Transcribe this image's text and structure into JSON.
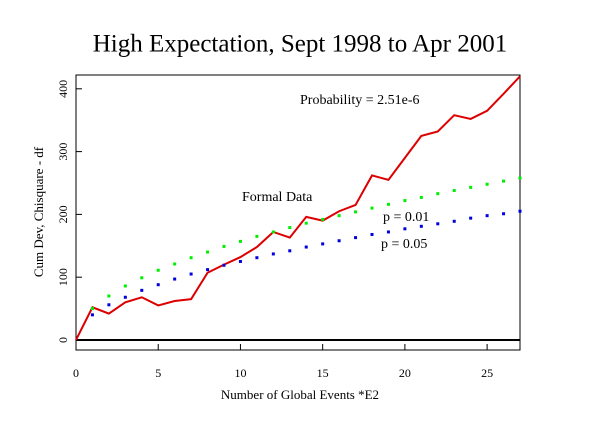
{
  "chart_data": {
    "type": "line",
    "title": "High Expectation, Sept 1998 to Apr 2001",
    "xlabel": "Number of Global Events  *E2",
    "ylabel": "Cum Dev, Chisquare - df",
    "x": [
      0,
      1,
      2,
      3,
      4,
      5,
      6,
      7,
      8,
      9,
      10,
      11,
      12,
      13,
      14,
      15,
      16,
      17,
      18,
      19,
      20,
      21,
      22,
      23,
      24,
      25,
      26,
      27
    ],
    "series": [
      {
        "name": "Formal Data",
        "color": "#dd0000",
        "style": "solid",
        "values": [
          0,
          52,
          42,
          60,
          68,
          55,
          62,
          65,
          107,
          120,
          132,
          148,
          172,
          163,
          196,
          190,
          205,
          215,
          262,
          255,
          290,
          325,
          332,
          358,
          352,
          365,
          392,
          420
        ]
      },
      {
        "name": "p = 0.01",
        "color": "#00ee00",
        "style": "dotted",
        "values": [
          null,
          50,
          70,
          86,
          99,
          111,
          121,
          131,
          140,
          149,
          157,
          165,
          172,
          179,
          186,
          192,
          198,
          204,
          210,
          216,
          222,
          227,
          233,
          238,
          243,
          248,
          253,
          258
        ]
      },
      {
        "name": "p = 0.05",
        "color": "#0000dd",
        "style": "dotted",
        "values": [
          null,
          40,
          56,
          68,
          79,
          88,
          97,
          105,
          112,
          119,
          125,
          131,
          137,
          142,
          148,
          153,
          158,
          163,
          168,
          172,
          177,
          181,
          185,
          189,
          194,
          198,
          201,
          205
        ]
      }
    ],
    "annotations": [
      {
        "text": "Probability = 2.51e-6",
        "color": "#dd0000"
      }
    ],
    "xlim": [
      0,
      27
    ],
    "ylim": [
      -16,
      422
    ],
    "xticks": [
      0,
      5,
      10,
      15,
      20,
      25
    ],
    "yticks": [
      0,
      100,
      200,
      300,
      400
    ],
    "zero_line": true
  }
}
